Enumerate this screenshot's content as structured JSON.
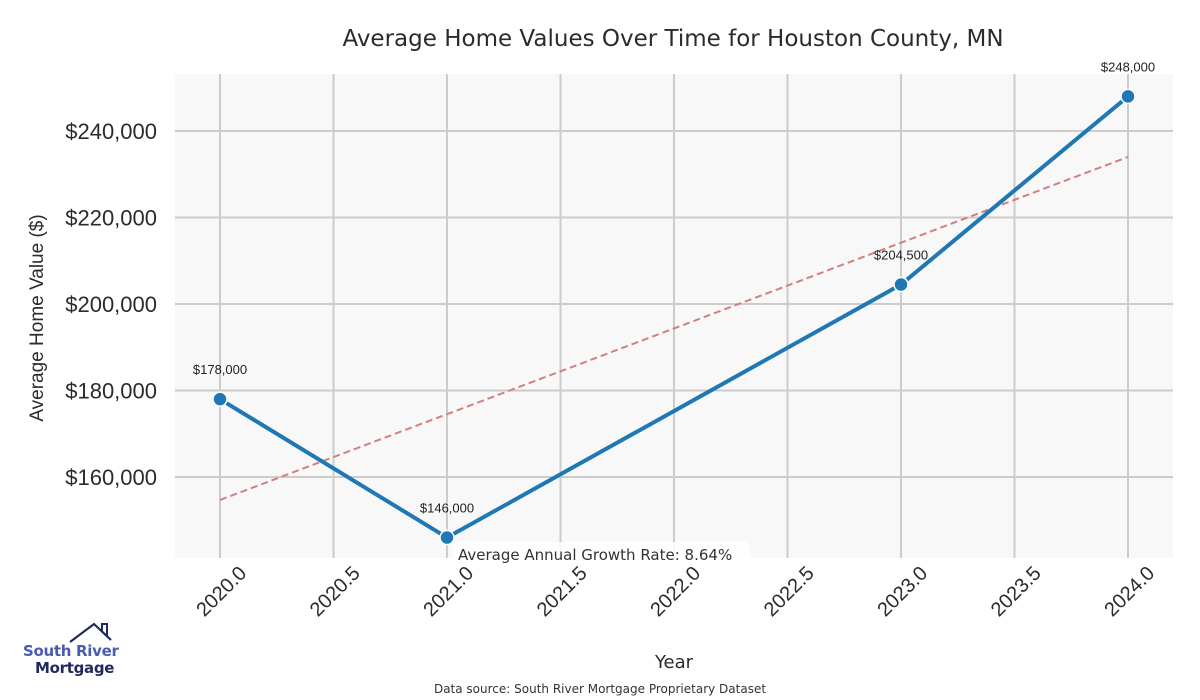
{
  "chart_data": {
    "type": "line",
    "title": "Average Home Values Over Time for Houston County, MN",
    "xlabel": "Year",
    "ylabel": "Average Home Value ($)",
    "x": [
      2020,
      2021,
      2023,
      2024
    ],
    "series": [
      {
        "name": "Average Home Value",
        "color": "#1f77b4",
        "values": [
          178000,
          146000,
          204500,
          248000
        ],
        "labels": [
          "$178,000",
          "$146,000",
          "$204,500",
          "$248,000"
        ]
      },
      {
        "name": "Trend",
        "color": "#d47f7f",
        "style": "dashed",
        "x": [
          2020,
          2024
        ],
        "values": [
          154700,
          234000
        ]
      }
    ],
    "xlim": [
      2019.8,
      2024.2
    ],
    "ylim": [
      141000,
      252000
    ],
    "xticks": [
      2020.0,
      2020.5,
      2021.0,
      2021.5,
      2022.0,
      2022.5,
      2023.0,
      2023.5,
      2024.0
    ],
    "xtick_labels": [
      "2020.0",
      "2020.5",
      "2021.0",
      "2021.5",
      "2022.0",
      "2022.5",
      "2023.0",
      "2023.5",
      "2024.0"
    ],
    "yticks": [
      160000,
      180000,
      200000,
      220000,
      240000
    ],
    "ytick_labels": [
      "$160,000",
      "$180,000",
      "$200,000",
      "$220,000",
      "$240,000"
    ],
    "grid": true,
    "annotation": "Average Annual Growth Rate: 8.64%",
    "source": "Data source: South River Mortgage Proprietary Dataset"
  },
  "logo": {
    "line1": "South River",
    "line2": "Mortgage"
  },
  "colors": {
    "plot_background": "#f8f8f8",
    "grid": "#cccccc",
    "line": "#1f77b4",
    "trend": "#d47f7f",
    "logo_primary": "#4a5bb0",
    "logo_dark": "#1f2a5c"
  }
}
